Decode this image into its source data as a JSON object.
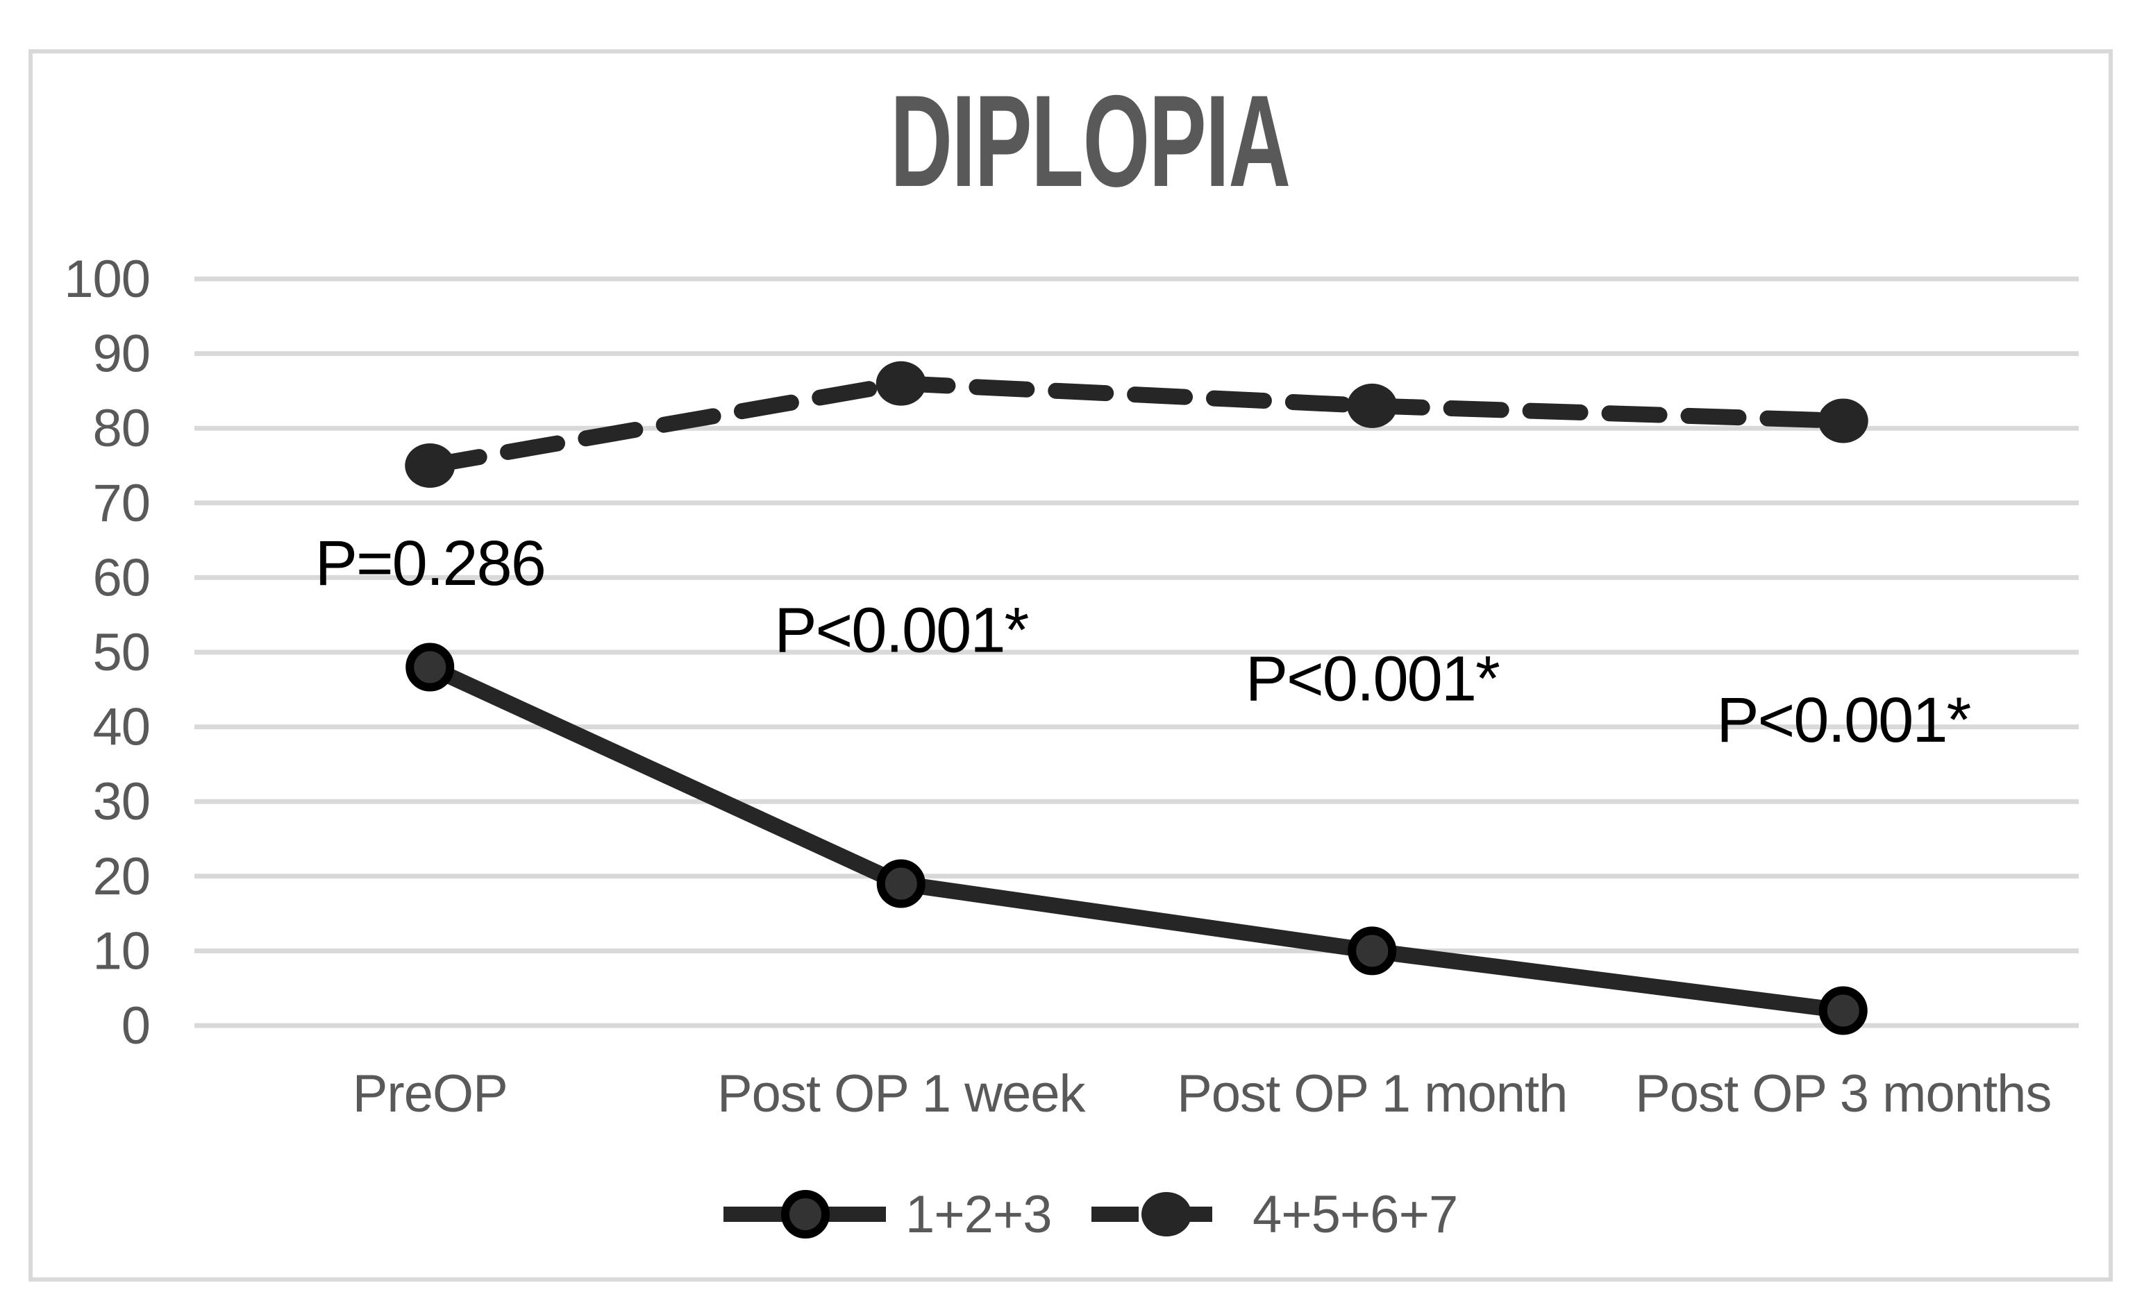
{
  "chart_data": {
    "type": "line",
    "title": "DIPLOPIA",
    "xlabel": "",
    "ylabel": "",
    "categories": [
      "PreOP",
      "Post OP 1 week",
      "Post OP 1 month",
      "Post OP 3 months"
    ],
    "series": [
      {
        "name": "1+2+3",
        "line_style": "solid",
        "marker": "ring-circle",
        "values": [
          48,
          19,
          10,
          2
        ]
      },
      {
        "name": "4+5+6+7",
        "line_style": "dashed",
        "marker": "filled-circle",
        "values": [
          75,
          86,
          83,
          81
        ]
      }
    ],
    "annotations": [
      {
        "text": "P=0.286",
        "category_index": 0,
        "y_value": 62
      },
      {
        "text": "P<0.001*",
        "category_index": 1,
        "y_value": 53
      },
      {
        "text": "P<0.001*",
        "category_index": 2,
        "y_value": 46.5
      },
      {
        "text": "P<0.001*",
        "category_index": 3,
        "y_value": 41
      }
    ],
    "ylim": [
      0,
      100
    ],
    "y_tick_step": 10,
    "y_tick_labels": [
      "0",
      "10",
      "20",
      "30",
      "40",
      "50",
      "60",
      "70",
      "80",
      "90",
      "100"
    ],
    "grid": "horizontal",
    "legend_position": "bottom-center",
    "colors": {
      "series": "#262626",
      "marker_fill": "#333333",
      "marker_ring": "#000000",
      "grid": "#d9d9d9",
      "frame": "#d9d9d9",
      "axis_text": "#595959",
      "title": "#595959",
      "annotation": "#000000",
      "background": "#ffffff"
    }
  }
}
